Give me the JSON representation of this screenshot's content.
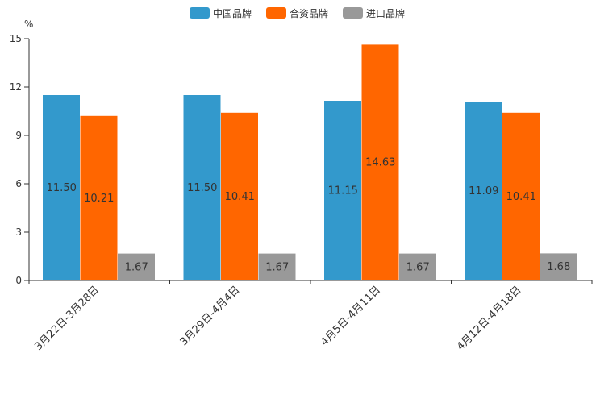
{
  "chart_data": {
    "type": "bar",
    "unit_label": "%",
    "categories": [
      "3月22日-3月28日",
      "3月29日-4月4日",
      "4月5日-4月11日",
      "4月12日-4月18日"
    ],
    "series": [
      {
        "name": "中国品牌",
        "color": "#3399cc",
        "values": [
          11.5,
          11.5,
          11.15,
          11.09
        ],
        "labels": [
          "11.50",
          "11.50",
          "11.15",
          "11.09"
        ]
      },
      {
        "name": "合资品牌",
        "color": "#ff6600",
        "values": [
          10.21,
          10.41,
          14.63,
          10.41
        ],
        "labels": [
          "10.21",
          "10.41",
          "14.63",
          "10.41"
        ]
      },
      {
        "name": "进口品牌",
        "color": "#999999",
        "values": [
          1.67,
          1.67,
          1.67,
          1.68
        ],
        "labels": [
          "1.67",
          "1.67",
          "1.67",
          "1.68"
        ]
      }
    ],
    "y_ticks": [
      "0",
      "3",
      "6",
      "9",
      "12",
      "15"
    ],
    "ylim": [
      0,
      15
    ],
    "legend_position": "top-center",
    "grid": false
  }
}
